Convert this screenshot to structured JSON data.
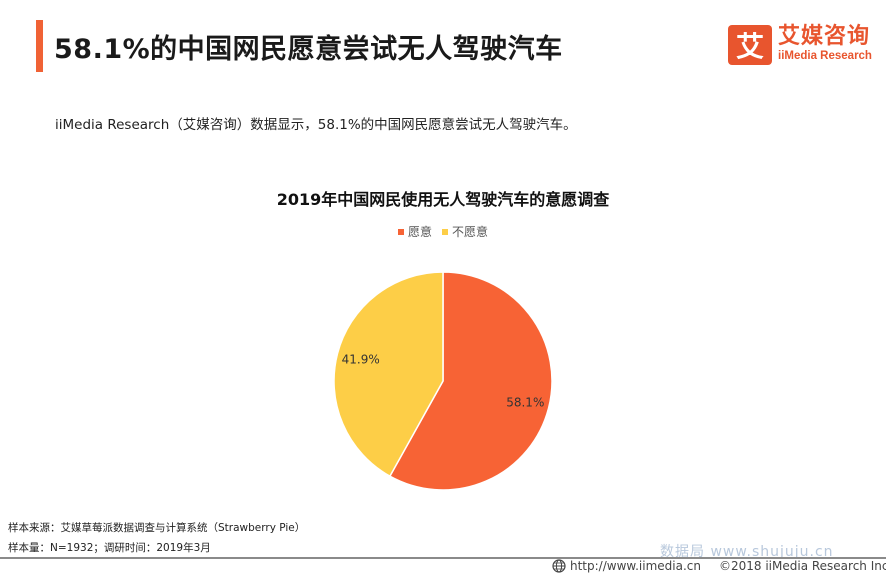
{
  "header": {
    "title": "58.1%的中国网民愿意尝试无人驾驶汽车",
    "accent_color": "#F06235"
  },
  "logo": {
    "mark": "艾",
    "name_cn": "艾媒咨询",
    "name_en": "iiMedia Research",
    "color": "#E8552E"
  },
  "summary": "iiMedia Research（艾媒咨询）数据显示，58.1%的中国网民愿意尝试无人驾驶汽车。",
  "chart_data": {
    "type": "pie",
    "title": "2019年中国网民使用无人驾驶汽车的意愿调查",
    "legend_position": "top",
    "slices": [
      {
        "label": "愿意",
        "value": 58.1,
        "display": "58.1%",
        "color": "#F76335"
      },
      {
        "label": "不愿意",
        "value": 41.9,
        "display": "41.9%",
        "color": "#FDCE47"
      }
    ]
  },
  "notes": {
    "source": "样本来源：艾媒草莓派数据调查与计算系统（Strawberry Pie）",
    "sample": "样本量：N=1932；调研时间：2019年3月"
  },
  "watermark": "数据局 www.shujuju.cn",
  "footer": {
    "url": "http://www.iimedia.cn",
    "copyright": "©2018  iiMedia Research Inc"
  }
}
